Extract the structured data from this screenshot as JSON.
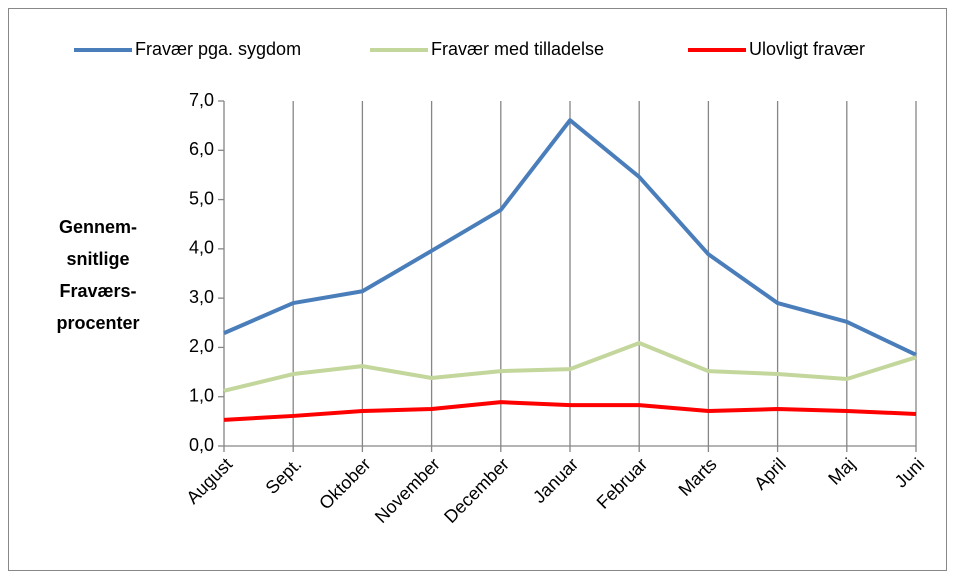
{
  "chart_data": {
    "type": "line",
    "ylabel": [
      "Gennem-",
      "snitlige",
      "Fraværs-",
      "procenter"
    ],
    "categories": [
      "August",
      "Sept.",
      "Oktober",
      "November",
      "December",
      "Januar",
      "Februar",
      "Marts",
      "April",
      "Maj",
      "Juni"
    ],
    "series": [
      {
        "name": "Fravær pga. sygdom",
        "color": "#4a7ebb",
        "values": [
          2.29,
          2.9,
          3.14,
          3.96,
          4.79,
          6.61,
          5.46,
          3.89,
          2.9,
          2.52,
          1.85
        ]
      },
      {
        "name": "Fravær med tilladelse",
        "color": "#c3d69b",
        "values": [
          1.12,
          1.46,
          1.62,
          1.38,
          1.52,
          1.56,
          2.09,
          1.52,
          1.46,
          1.36,
          1.8
        ]
      },
      {
        "name": "Ulovligt fravær",
        "color": "#ff0000",
        "values": [
          0.53,
          0.61,
          0.71,
          0.75,
          0.89,
          0.83,
          0.83,
          0.71,
          0.75,
          0.71,
          0.65
        ]
      }
    ],
    "ylim": [
      0,
      7
    ],
    "yticks": [
      {
        "value": 0,
        "label": "0,0"
      },
      {
        "value": 1,
        "label": "1,0"
      },
      {
        "value": 2,
        "label": "2,0"
      },
      {
        "value": 3,
        "label": "3,0"
      },
      {
        "value": 4,
        "label": "4,0"
      },
      {
        "value": 5,
        "label": "5,0"
      },
      {
        "value": 6,
        "label": "6,0"
      },
      {
        "value": 7,
        "label": "7,0"
      }
    ],
    "grid": true,
    "legend": "top"
  }
}
